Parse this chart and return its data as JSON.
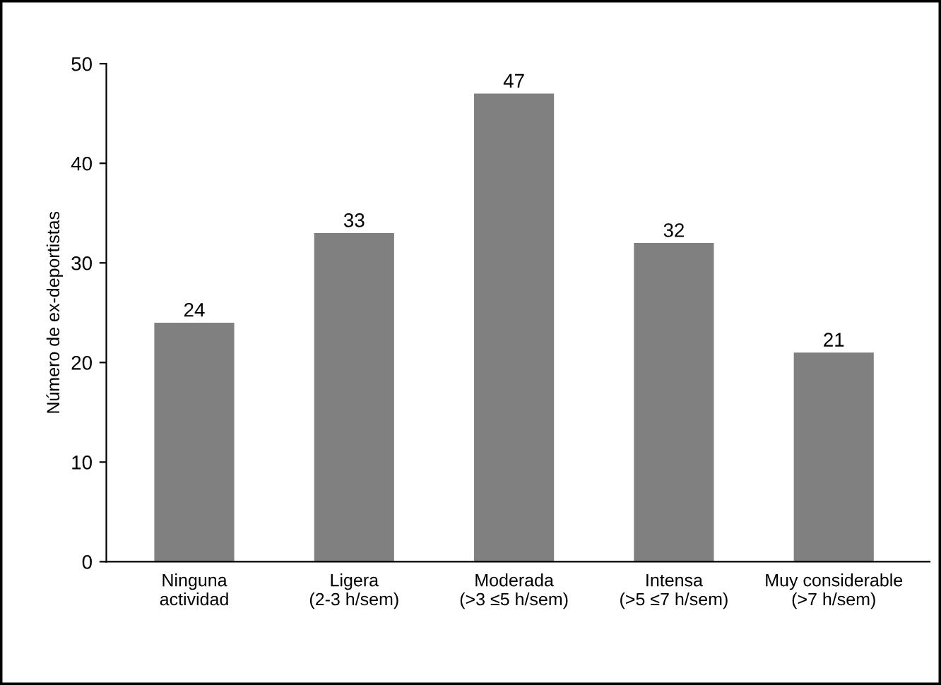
{
  "chart_data": {
    "type": "bar",
    "ylabel": "Número de ex-deportistas",
    "categories": [
      "Ninguna\nactividad",
      "Ligera\n(2-3 h/sem)",
      "Moderada\n(>3 ≤5 h/sem)",
      "Intensa\n(>5 ≤7 h/sem)",
      "Muy considerable\n(>7 h/sem)"
    ],
    "values": [
      24,
      33,
      47,
      32,
      21
    ],
    "color": "#808080",
    "ylim": [
      0,
      50
    ],
    "yticks": [
      0,
      10,
      20,
      30,
      40,
      50
    ],
    "grid": false,
    "data_labels": true
  }
}
